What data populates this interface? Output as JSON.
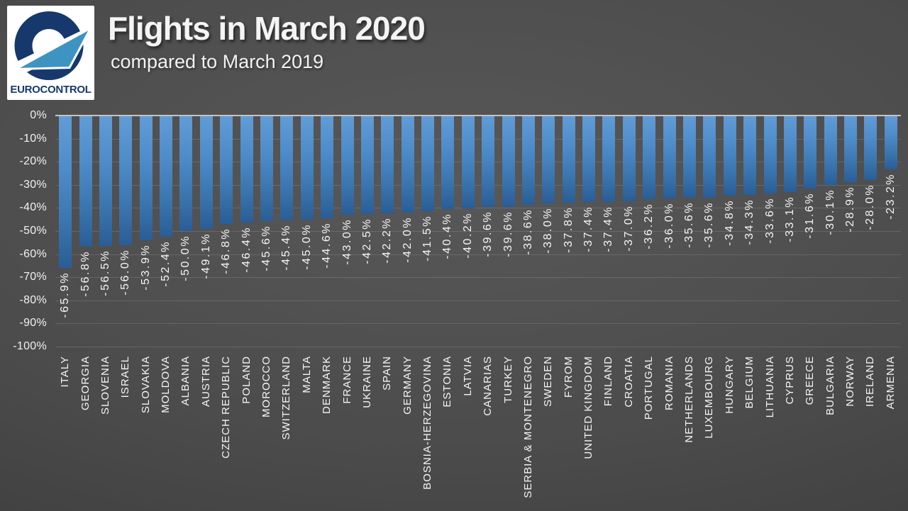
{
  "header": {
    "title": "Flights in March 2020",
    "subtitle": "compared to March 2019",
    "logo_text": "EUROCONTROL"
  },
  "chart_data": {
    "type": "bar",
    "title": "Flights in March 2020",
    "subtitle": "compared to March 2019",
    "unit": "%",
    "ylim": [
      -100,
      0
    ],
    "ytick_step": 10,
    "ytick_labels": [
      "0%",
      "-10%",
      "-20%",
      "-30%",
      "-40%",
      "-50%",
      "-60%",
      "-70%",
      "-80%",
      "-90%",
      "-100%"
    ],
    "grid": true,
    "legend": "none",
    "categories": [
      "ITALY",
      "GEORGIA",
      "SLOVENIA",
      "ISRAEL",
      "SLOVAKIA",
      "MOLDOVA",
      "ALBANIA",
      "AUSTRIA",
      "CZECH REPUBLIC",
      "POLAND",
      "MOROCCO",
      "SWITZERLAND",
      "MALTA",
      "DENMARK",
      "FRANCE",
      "UKRAINE",
      "SPAIN",
      "GERMANY",
      "BOSNIA-HERZEGOVINA",
      "ESTONIA",
      "LATVIA",
      "CANARIAS",
      "TURKEY",
      "SERBIA & MONTENEGRO",
      "SWEDEN",
      "FYROM",
      "UNITED KINGDOM",
      "FINLAND",
      "CROATIA",
      "PORTUGAL",
      "ROMANIA",
      "NETHERLANDS",
      "LUXEMBOURG",
      "HUNGARY",
      "BELGIUM",
      "LITHUANIA",
      "CYPRUS",
      "GREECE",
      "BULGARIA",
      "NORWAY",
      "IRELAND",
      "ARMENIA"
    ],
    "values": [
      -65.9,
      -56.8,
      -56.5,
      -56.0,
      -53.9,
      -52.4,
      -50.0,
      -49.1,
      -46.8,
      -46.4,
      -45.6,
      -45.4,
      -45.0,
      -44.6,
      -43.0,
      -42.5,
      -42.2,
      -42.0,
      -41.5,
      -40.4,
      -40.2,
      -39.6,
      -39.6,
      -38.6,
      -38.0,
      -37.8,
      -37.4,
      -37.4,
      -37.0,
      -36.2,
      -36.0,
      -35.6,
      -35.6,
      -34.8,
      -34.3,
      -33.6,
      -33.1,
      -31.6,
      -30.1,
      -28.9,
      -28.0,
      -23.2
    ],
    "value_labels": [
      "-65.9%",
      "-56.8%",
      "-56.5%",
      "-56.0%",
      "-53.9%",
      "-52.4%",
      "-50.0%",
      "-49.1%",
      "-46.8%",
      "-46.4%",
      "-45.6%",
      "-45.4%",
      "-45.0%",
      "-44.6%",
      "-43.0%",
      "-42.5%",
      "-42.2%",
      "-42.0%",
      "-41.5%",
      "-40.4%",
      "-40.2%",
      "-39.6%",
      "-39.6%",
      "-38.6%",
      "-38.0%",
      "-37.8%",
      "-37.4%",
      "-37.4%",
      "-37.0%",
      "-36.2%",
      "-36.0%",
      "-35.6%",
      "-35.6%",
      "-34.8%",
      "-34.3%",
      "-33.6%",
      "-33.1%",
      "-31.6%",
      "-30.1%",
      "-28.9%",
      "-28.0%",
      "-23.2%"
    ],
    "colors": {
      "bar_gradient_top": "#619cd6",
      "bar_gradient_bottom": "#2a5d95",
      "axis_line": "#c4c4c4",
      "gridline": "rgba(255,255,255,0.13)",
      "label_text": "#f5f5f5",
      "background_center": "#585858",
      "background_edge": "#2c2c2c",
      "logo_navy": "#16386d",
      "logo_lightblue": "#3d94c0"
    }
  }
}
